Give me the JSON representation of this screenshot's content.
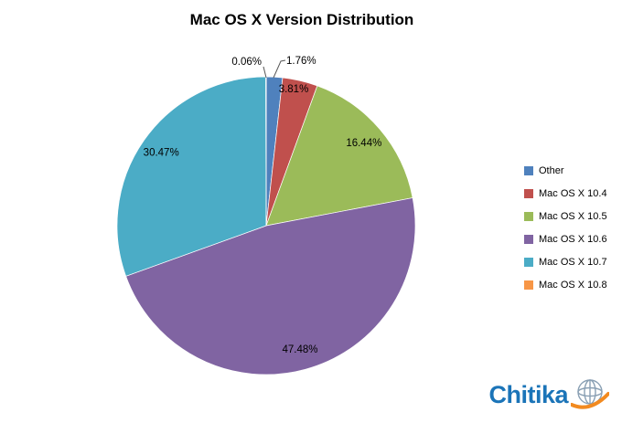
{
  "title": "Mac OS X Version Distribution",
  "chart_data": {
    "type": "pie",
    "title": "Mac OS X Version Distribution",
    "legend_position": "right",
    "labels_format": "percent",
    "categories": [
      "Other",
      "Mac OS X 10.4",
      "Mac OS X 10.5",
      "Mac OS X 10.6",
      "Mac OS X 10.7",
      "Mac OS X 10.8"
    ],
    "values": [
      1.76,
      3.81,
      16.44,
      47.48,
      30.47,
      0.06
    ],
    "value_labels": [
      "1.76%",
      "3.81%",
      "16.44%",
      "47.48%",
      "30.47%",
      "0.06%"
    ],
    "colors": [
      "#4f81bd",
      "#c0504d",
      "#9bbb59",
      "#8064a2",
      "#4bacc6",
      "#f79646"
    ]
  },
  "branding": {
    "logo_text": "Chitika",
    "logo_color": "#1b74b8",
    "swoosh_color": "#f28a20"
  }
}
